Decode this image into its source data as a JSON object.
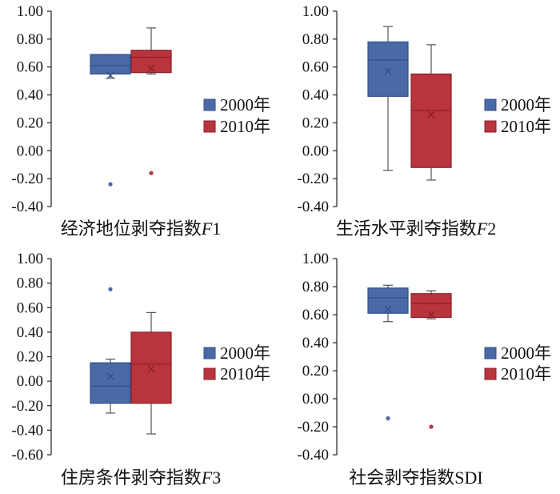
{
  "colors": {
    "series_2000": "#4a6aa6",
    "series_2000_stroke": "#2f4f8a",
    "series_2010": "#b9343d",
    "series_2010_stroke": "#8a1f27",
    "axis": "#222222"
  },
  "chart_data": [
    {
      "type": "box",
      "title": "经济地位剥夺指数F1",
      "title_main": "经济地位剥夺指数",
      "title_var": "F",
      "title_sub": "1",
      "ylim": [
        -0.4,
        1.0
      ],
      "ticks": [
        "1.00",
        "0.80",
        "0.60",
        "0.40",
        "0.20",
        "0.00",
        "-0.20",
        "-0.40"
      ],
      "legend": [
        "2000年",
        "2010年"
      ],
      "series": [
        {
          "name": "2000年",
          "min": 0.52,
          "q1": 0.55,
          "median": 0.61,
          "q3": 0.69,
          "max": 0.69,
          "mean": 0.54,
          "outliers": [
            -0.24
          ]
        },
        {
          "name": "2010年",
          "min": 0.55,
          "q1": 0.56,
          "median": 0.67,
          "q3": 0.72,
          "max": 0.88,
          "mean": 0.59,
          "outliers": [
            -0.16
          ]
        }
      ]
    },
    {
      "type": "box",
      "title": "生活水平剥夺指数F2",
      "title_main": "生活水平剥夺指数",
      "title_var": "F",
      "title_sub": "2",
      "ylim": [
        -0.4,
        1.0
      ],
      "ticks": [
        "1.00",
        "0.80",
        "0.60",
        "0.40",
        "0.20",
        "0.00",
        "-0.20",
        "-0.40"
      ],
      "legend": [
        "2000年",
        "2010年"
      ],
      "series": [
        {
          "name": "2000年",
          "min": -0.14,
          "q1": 0.39,
          "median": 0.65,
          "q3": 0.78,
          "max": 0.89,
          "mean": 0.57,
          "outliers": []
        },
        {
          "name": "2010年",
          "min": -0.21,
          "q1": -0.12,
          "median": 0.29,
          "q3": 0.55,
          "max": 0.76,
          "mean": 0.26,
          "outliers": []
        }
      ]
    },
    {
      "type": "box",
      "title": "住房条件剥夺指数F3",
      "title_main": "住房条件剥夺指数",
      "title_var": "F",
      "title_sub": "3",
      "ylim": [
        -0.6,
        1.0
      ],
      "ticks": [
        "1.00",
        "0.80",
        "0.60",
        "0.40",
        "0.20",
        "0.00",
        "-0.20",
        "-0.40",
        "-0.60"
      ],
      "legend": [
        "2000年",
        "2010年"
      ],
      "series": [
        {
          "name": "2000年",
          "min": -0.26,
          "q1": -0.18,
          "median": -0.04,
          "q3": 0.15,
          "max": 0.18,
          "mean": 0.04,
          "outliers": [
            0.75
          ]
        },
        {
          "name": "2010年",
          "min": -0.43,
          "q1": -0.18,
          "median": 0.14,
          "q3": 0.4,
          "max": 0.56,
          "mean": 0.1,
          "outliers": []
        }
      ]
    },
    {
      "type": "box",
      "title": "社会剥夺指数SDI",
      "title_main": "社会剥夺指数SDI",
      "title_var": "",
      "title_sub": "",
      "ylim": [
        -0.4,
        1.0
      ],
      "ticks": [
        "1.00",
        "0.80",
        "0.60",
        "0.40",
        "0.20",
        "0.00",
        "-0.20",
        "-0.40"
      ],
      "legend": [
        "2000年",
        "2010年"
      ],
      "series": [
        {
          "name": "2000年",
          "min": 0.55,
          "q1": 0.61,
          "median": 0.72,
          "q3": 0.79,
          "max": 0.81,
          "mean": 0.64,
          "outliers": [
            -0.14
          ]
        },
        {
          "name": "2010年",
          "min": 0.57,
          "q1": 0.58,
          "median": 0.68,
          "q3": 0.75,
          "max": 0.77,
          "mean": 0.6,
          "outliers": [
            -0.2
          ]
        }
      ]
    }
  ]
}
